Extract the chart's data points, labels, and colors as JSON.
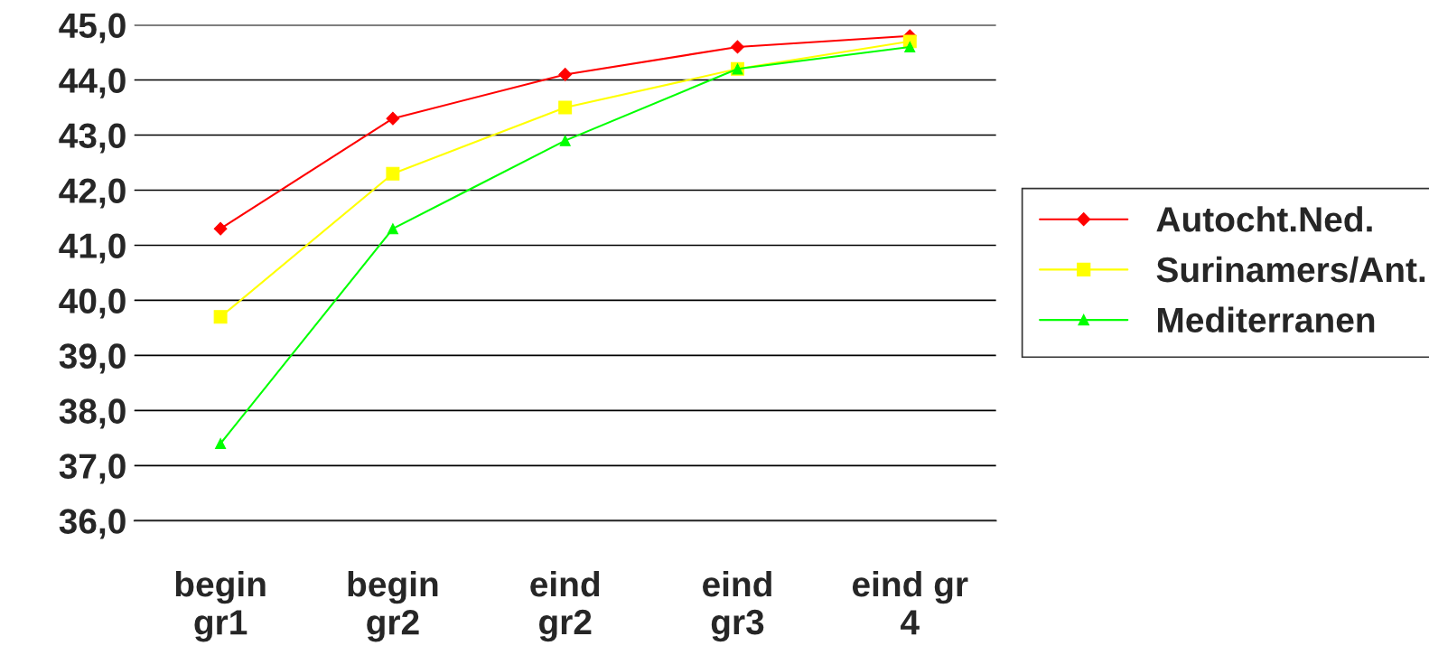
{
  "chart_data": {
    "type": "line",
    "categories": [
      "begin\ngr1",
      "begin\ngr2",
      "eind\ngr2",
      "eind\ngr3",
      "eind gr\n4"
    ],
    "series": [
      {
        "name": "Autocht.Ned.",
        "color": "#ff0000",
        "marker": "diamond",
        "values": [
          41.3,
          43.3,
          44.1,
          44.6,
          44.8
        ]
      },
      {
        "name": "Surinamers/Ant.",
        "color": "#ffff00",
        "marker": "square",
        "values": [
          39.7,
          42.3,
          43.5,
          44.2,
          44.7
        ]
      },
      {
        "name": "Mediterranen",
        "color": "#00ff00",
        "marker": "triangle",
        "values": [
          37.4,
          41.3,
          42.9,
          44.2,
          44.6
        ]
      }
    ],
    "ylim": [
      36,
      45
    ],
    "yticks": [
      {
        "value": 36,
        "label": "36,0"
      },
      {
        "value": 37,
        "label": "37,0"
      },
      {
        "value": 38,
        "label": "38,0"
      },
      {
        "value": 39,
        "label": "39,0"
      },
      {
        "value": 40,
        "label": "40,0"
      },
      {
        "value": 41,
        "label": "41,0"
      },
      {
        "value": 42,
        "label": "42,0"
      },
      {
        "value": 43,
        "label": "43,0"
      },
      {
        "value": 44,
        "label": "44,0"
      },
      {
        "value": 45,
        "label": "45,0"
      }
    ],
    "grid": "y",
    "legend": "right",
    "line_style": "solid"
  }
}
